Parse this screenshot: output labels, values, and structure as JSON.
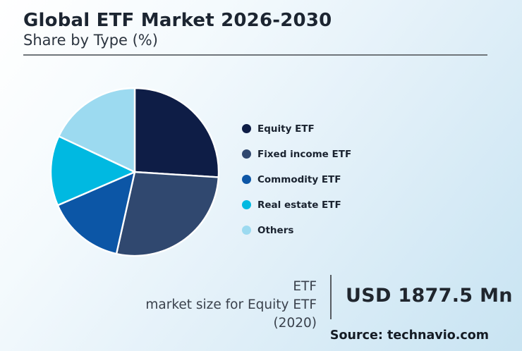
{
  "header": {
    "title": "Global ETF Market 2026-2030",
    "subtitle": "Share by Type (%)"
  },
  "chart_data": {
    "type": "pie",
    "title": "Global ETF Market 2026-2030",
    "subtitle": "Share by Type (%)",
    "categories": [
      "Equity ETF",
      "Fixed income ETF",
      "Commodity ETF",
      "Real estate ETF",
      "Others"
    ],
    "values": [
      26,
      27.5,
      15,
      13.5,
      18
    ],
    "unit": "%",
    "colors": [
      "#0e1d46",
      "#30486f",
      "#0c56a6",
      "#00b9e1",
      "#9cdaf0"
    ],
    "start_angle_deg": 0,
    "direction": "clockwise",
    "slice_labels": "none",
    "legend_position": "right",
    "slice_border_color": "#ffffff"
  },
  "legend": {
    "items": [
      {
        "label": "Equity ETF",
        "color": "#0e1d46"
      },
      {
        "label": "Fixed income ETF",
        "color": "#30486f"
      },
      {
        "label": "Commodity ETF",
        "color": "#0c56a6"
      },
      {
        "label": "Real estate ETF",
        "color": "#00b9e1"
      },
      {
        "label": "Others",
        "color": "#9cdaf0"
      }
    ]
  },
  "stat": {
    "label_line1": "ETF",
    "label_line2": "market size for Equity ETF (2020)",
    "value": "USD 1877.5 Mn"
  },
  "source": {
    "text": "Source: technavio.com"
  },
  "style": {
    "background_top_left": "#ffffff",
    "background_bottom_right": "#c9e4f2",
    "rule_color": "#70767b"
  }
}
